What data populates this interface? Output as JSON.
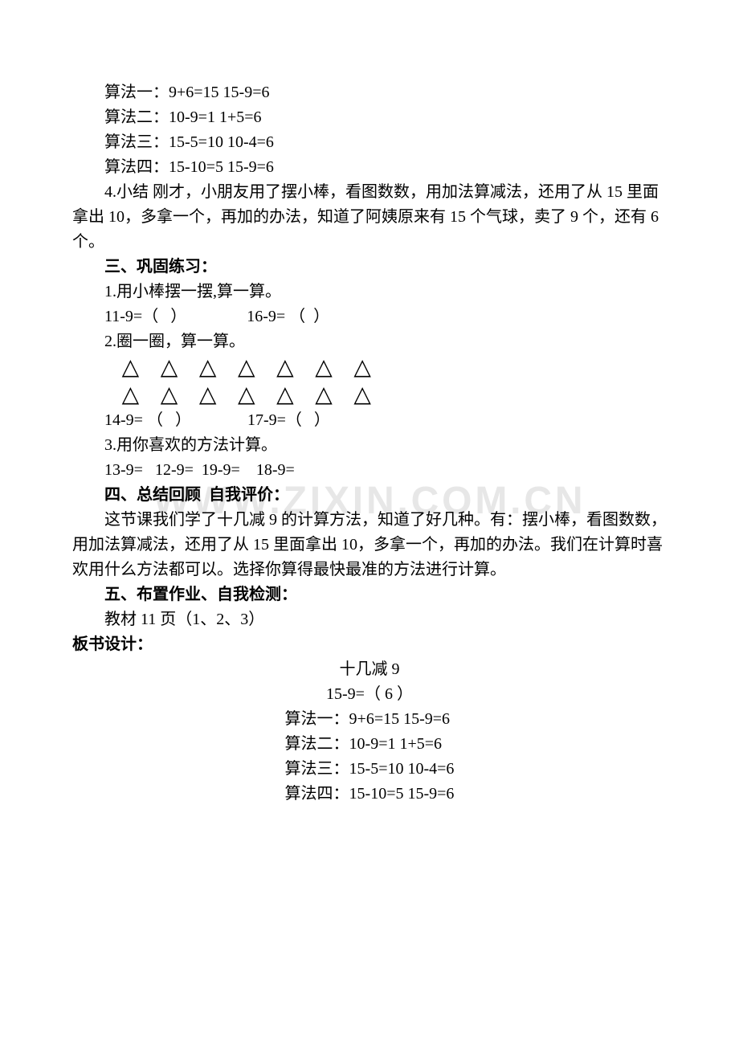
{
  "colors": {
    "text": "#000000",
    "background": "#ffffff",
    "watermark": "#e7e7e7"
  },
  "typography": {
    "body_font": "SimSun/宋体",
    "body_size_pt": 15,
    "watermark_font": "Arial",
    "watermark_size_pt": 36,
    "watermark_weight": "bold"
  },
  "watermark": "WWW.ZIXIN.COM.CN",
  "algs_intro": {
    "a1": "算法一：9+6=15 15-9=6",
    "a2": "算法二：10-9=1 1+5=6",
    "a3": "算法三：15-5=10 10-4=6",
    "a4": "算法四：15-10=5 15-9=6"
  },
  "xiaojie": "4.小结 刚才，小朋友用了摆小棒，看图数数，用加法算减法，还用了从 15 里面拿出 10，多拿一个，再加的办法，知道了阿姨原来有 15 个气球，卖了 9 个，还有 6 个。",
  "sec3": {
    "title": "三、巩固练习：",
    "q1_label": "1.用小棒摆一摆,算一算。",
    "q1_line": "11-9=（   ）               16-9= （  ）",
    "q2_label": "2.圈一圈，算一算。",
    "tri_row1": "△ △ △ △ △    △ △",
    "tri_row2": "△ △ △ △ △    △ △",
    "q2_line": "14-9= （   ）              17-9=（   ）",
    "q3_label": "3.用你喜欢的方法计算。",
    "q3_line": "13-9=   12-9=  19-9=    18-9="
  },
  "sec4": {
    "title": "四、总结回顾  自我评价：",
    "body": "这节课我们学了十几减 9 的计算方法，知道了好几种。有：摆小棒，看图数数，用加法算减法，还用了从 15 里面拿出 10，多拿一个，再加的办法。我们在计算时喜欢用什么方法都可以。选择你算得最快最准的方法进行计算。"
  },
  "sec5": {
    "title": "五、布置作业、自我检测：",
    "body": "教材 11 页（1、2、3）"
  },
  "board": {
    "label": "板书设计：",
    "title": "十几减 9",
    "eq": "15-9=（ 6 ）",
    "a1": "算法一：9+6=15 15-9=6",
    "a2": "算法二：10-9=1 1+5=6",
    "a3": "算法三：15-5=10 10-4=6",
    "a4": "算法四：15-10=5 15-9=6"
  }
}
